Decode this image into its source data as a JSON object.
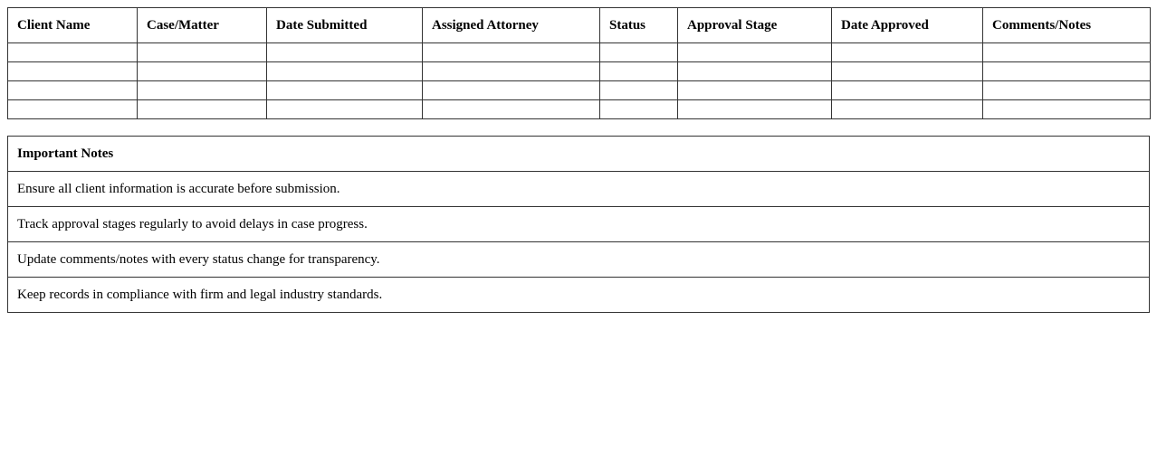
{
  "tracker": {
    "columns": [
      "Client Name",
      "Case/Matter",
      "Date Submitted",
      "Assigned Attorney",
      "Status",
      "Approval Stage",
      "Date Approved",
      "Comments/Notes"
    ],
    "rows": [
      [
        "",
        "",
        "",
        "",
        "",
        "",
        "",
        ""
      ],
      [
        "",
        "",
        "",
        "",
        "",
        "",
        "",
        ""
      ],
      [
        "",
        "",
        "",
        "",
        "",
        "",
        "",
        ""
      ],
      [
        "",
        "",
        "",
        "",
        "",
        "",
        "",
        ""
      ]
    ]
  },
  "notes": {
    "title": "Important Notes",
    "items": [
      "Ensure all client information is accurate before submission.",
      "Track approval stages regularly to avoid delays in case progress.",
      "Update comments/notes with every status change for transparency.",
      "Keep records in compliance with firm and legal industry standards."
    ]
  }
}
